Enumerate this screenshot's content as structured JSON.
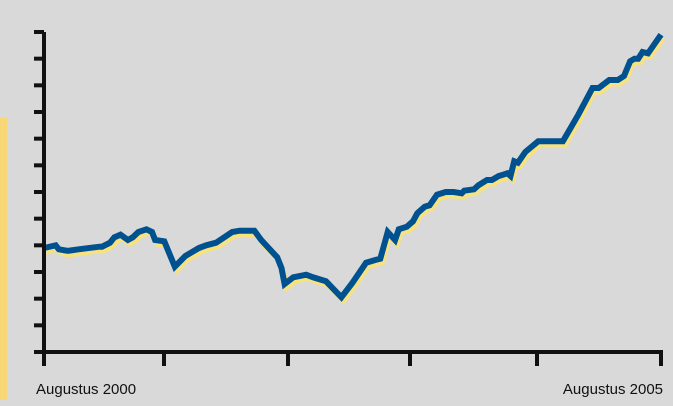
{
  "colors": {
    "background": "#d9d9d9",
    "line": "#00518f",
    "line_shadow": "#f7e27f",
    "axis": "#111111",
    "left_accent": "#f7d776"
  },
  "chart_data": {
    "type": "line",
    "title": "",
    "xlabel": "",
    "ylabel": "",
    "x_tick_labels": {
      "start": "Augustus 2000",
      "end": "Augustus 2005"
    },
    "x_ticks_count": 6,
    "y_ticks_count": 12,
    "grid": false,
    "legend": "none",
    "xlim": [
      0,
      100
    ],
    "ylim": [
      0,
      12
    ],
    "series": [
      {
        "x": [
          0,
          1.9,
          2.4,
          3.7,
          4.0,
          5.6,
          9.0,
          9.4,
          10.7,
          11.4,
          12.4,
          13.6,
          14.4,
          15.3,
          16.6,
          17.5,
          18.0,
          19.5,
          21.2,
          22.9,
          25.1,
          26.3,
          27.9,
          30.5,
          31.7,
          34.1,
          35.2,
          37.8,
          38.5,
          39.0,
          40.4,
          42.5,
          43.6,
          45.7,
          48.2,
          50.0,
          52.2,
          53.7,
          54.5,
          55.7,
          56.9,
          57.5,
          58.8,
          59.8,
          60.5,
          61.7,
          62.5,
          63.7,
          65.1,
          66.4,
          67.7,
          68.1,
          69.7,
          70.4,
          71.8,
          72.6,
          73.7,
          74.4,
          75.1,
          75.6,
          76.2,
          76.8,
          78.0,
          80.1,
          81.7,
          82.6,
          84.1,
          86.6,
          88.9,
          89.9,
          91.6,
          93.0,
          94.0,
          95.0,
          95.7,
          96.3,
          97.0,
          97.9,
          98.8,
          100.0
        ],
        "y": [
          3.9,
          4.0,
          3.85,
          3.8,
          3.8,
          3.85,
          3.95,
          3.95,
          4.1,
          4.3,
          4.4,
          4.2,
          4.3,
          4.5,
          4.6,
          4.5,
          4.2,
          4.15,
          3.2,
          3.6,
          3.9,
          4.0,
          4.1,
          4.5,
          4.55,
          4.55,
          4.2,
          3.55,
          3.15,
          2.55,
          2.8,
          2.9,
          2.8,
          2.65,
          2.05,
          2.6,
          3.35,
          3.45,
          3.5,
          4.5,
          4.2,
          4.6,
          4.7,
          4.9,
          5.2,
          5.45,
          5.5,
          5.9,
          6.0,
          6.0,
          5.95,
          6.05,
          6.1,
          6.25,
          6.45,
          6.45,
          6.6,
          6.65,
          6.7,
          6.6,
          7.15,
          7.1,
          7.5,
          7.9,
          7.9,
          7.9,
          7.9,
          8.9,
          9.9,
          9.9,
          10.2,
          10.2,
          10.35,
          10.9,
          11.0,
          11.0,
          11.25,
          11.2,
          11.5,
          11.9
        ]
      }
    ]
  }
}
